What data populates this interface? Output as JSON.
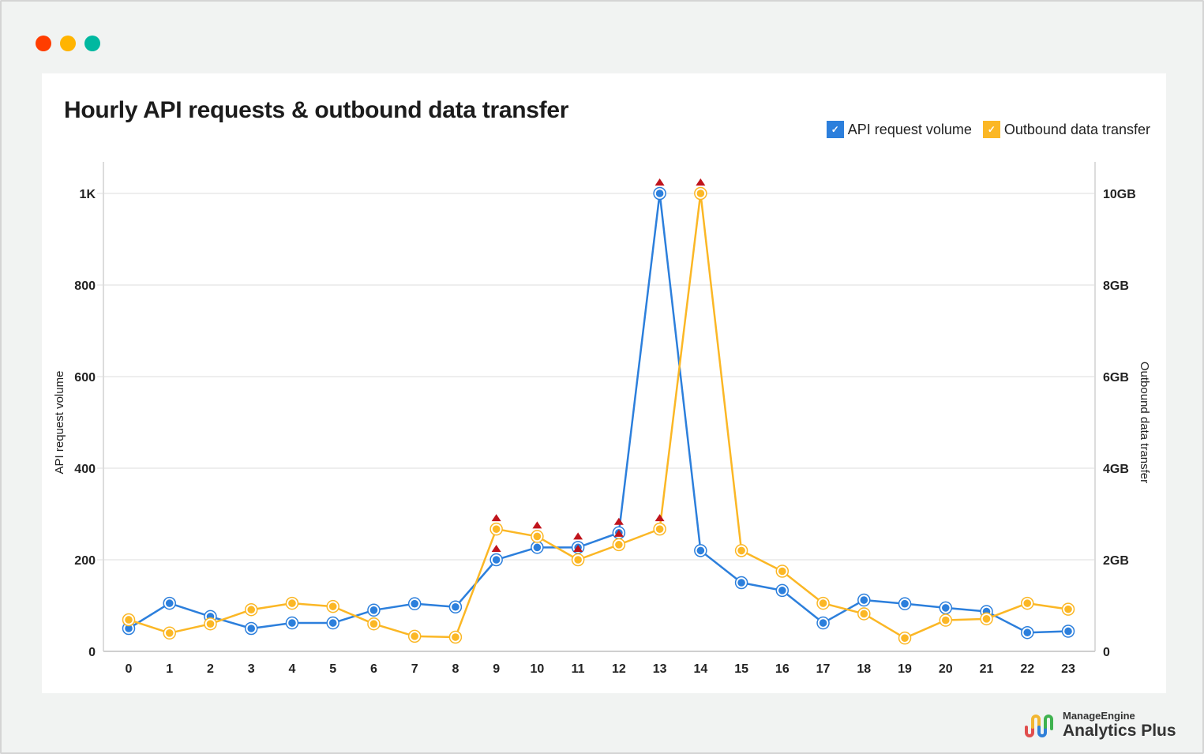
{
  "window": {
    "traffic_lights": [
      "#ff3d00",
      "#ffb400",
      "#00b8a0"
    ]
  },
  "chart_data": {
    "type": "line",
    "title": "Hourly API requests & outbound data transfer",
    "xlabel": "",
    "x": [
      0,
      1,
      2,
      3,
      4,
      5,
      6,
      7,
      8,
      9,
      10,
      11,
      12,
      13,
      14,
      15,
      16,
      17,
      18,
      19,
      20,
      21,
      22,
      23
    ],
    "categories": [
      "0",
      "1",
      "2",
      "3",
      "4",
      "5",
      "6",
      "7",
      "8",
      "9",
      "10",
      "11",
      "12",
      "13",
      "14",
      "15",
      "16",
      "17",
      "18",
      "19",
      "20",
      "21",
      "22",
      "23"
    ],
    "series": [
      {
        "name": "API request volume",
        "axis": "left",
        "color": "#2c7fdc",
        "values": [
          50,
          105,
          76,
          50,
          62,
          62,
          90,
          104,
          97,
          200,
          227,
          227,
          259,
          1000,
          220,
          150,
          133,
          62,
          112,
          104,
          95,
          87,
          41,
          44
        ],
        "anomaly_markers": [
          9,
          10,
          11,
          12,
          13
        ]
      },
      {
        "name": "Outbound data transfer",
        "axis": "right",
        "unit": "GB",
        "color": "#fbb725",
        "values": [
          0.69,
          0.4,
          0.6,
          0.91,
          1.05,
          0.98,
          0.6,
          0.33,
          0.31,
          2.67,
          2.51,
          2.0,
          2.33,
          2.67,
          10.0,
          2.2,
          1.75,
          1.05,
          0.82,
          0.29,
          0.68,
          0.71,
          1.05,
          0.92
        ],
        "anomaly_markers": [
          9,
          10,
          11,
          12,
          13,
          14
        ]
      }
    ],
    "left_axis": {
      "label": "API request volume",
      "ylim": [
        0,
        1000
      ],
      "ticks": [
        0,
        200,
        400,
        600,
        800,
        1000
      ],
      "tick_labels": [
        "0",
        "200",
        "400",
        "600",
        "800",
        "1K"
      ]
    },
    "right_axis": {
      "label": "Outbound data transfer",
      "ylim": [
        0,
        10
      ],
      "ticks": [
        0,
        2,
        4,
        6,
        8,
        10
      ],
      "tick_labels": [
        "0",
        "2GB",
        "4GB",
        "6GB",
        "8GB",
        "10GB"
      ]
    },
    "grid": true,
    "legend_position": "top-right",
    "anomaly_marker_color": "#c0141c"
  },
  "legend": [
    {
      "label": "API request volume",
      "color": "#2c7fdc",
      "checked": "✓"
    },
    {
      "label": "Outbound data transfer",
      "color": "#fbb725",
      "checked": "✓"
    }
  ],
  "brand": {
    "top": "ManageEngine",
    "bottom": "Analytics Plus"
  }
}
